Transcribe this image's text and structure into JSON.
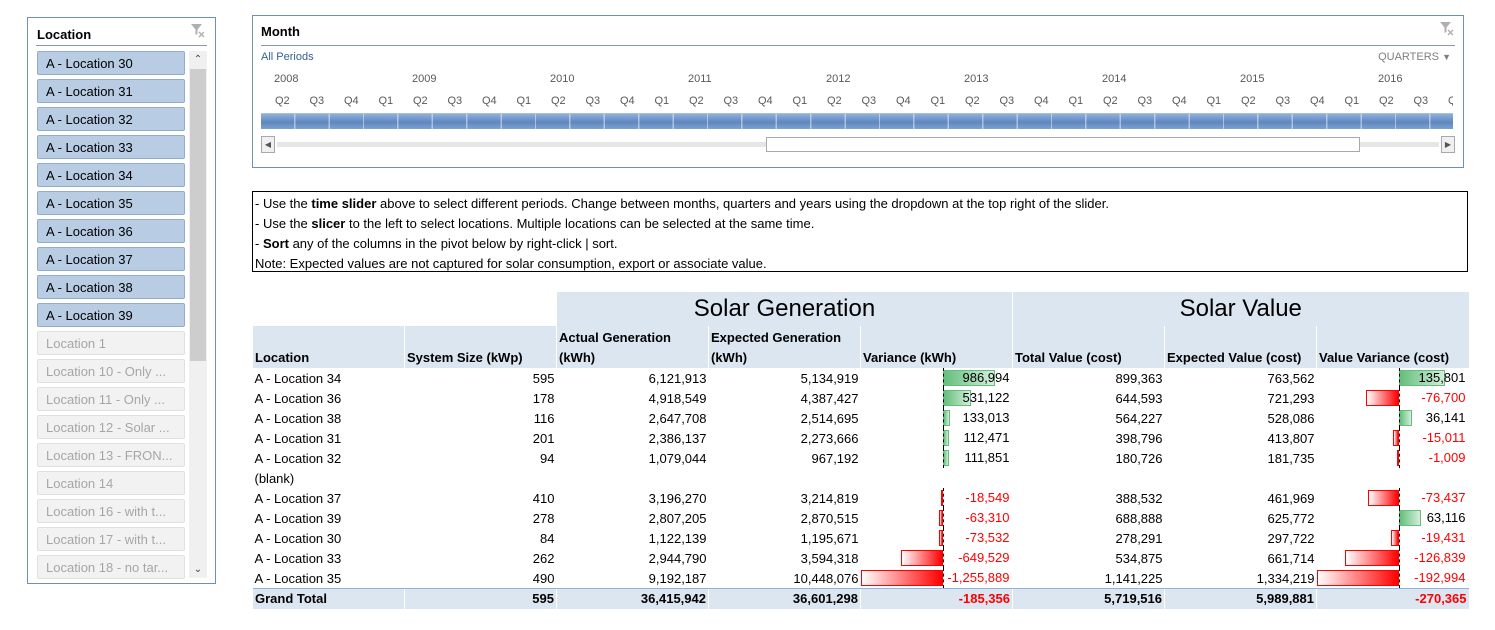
{
  "slicer": {
    "title": "Location",
    "clear_icon": "clear-filter-icon",
    "items": [
      {
        "label": "A - Location 30",
        "selected": true
      },
      {
        "label": "A - Location 31",
        "selected": true
      },
      {
        "label": "A - Location 32",
        "selected": true
      },
      {
        "label": "A - Location 33",
        "selected": true
      },
      {
        "label": "A - Location 34",
        "selected": true
      },
      {
        "label": "A - Location 35",
        "selected": true
      },
      {
        "label": "A - Location 36",
        "selected": true
      },
      {
        "label": "A - Location 37",
        "selected": true
      },
      {
        "label": "A - Location 38",
        "selected": true
      },
      {
        "label": "A - Location 39",
        "selected": true
      },
      {
        "label": "Location 1",
        "selected": false
      },
      {
        "label": "Location 10 - Only ...",
        "selected": false
      },
      {
        "label": "Location 11 - Only ...",
        "selected": false
      },
      {
        "label": "Location 12 - Solar ...",
        "selected": false
      },
      {
        "label": "Location 13 - FRON...",
        "selected": false
      },
      {
        "label": "Location 14",
        "selected": false
      },
      {
        "label": "Location 16 - with t...",
        "selected": false
      },
      {
        "label": "Location 17 - with t...",
        "selected": false
      },
      {
        "label": "Location 18 - no tar...",
        "selected": false
      }
    ]
  },
  "timeline": {
    "title": "Month",
    "all_periods": "All Periods",
    "level": "QUARTERS",
    "years": [
      "2008",
      "2009",
      "2010",
      "2011",
      "2012",
      "2013",
      "2014",
      "2015",
      "2016"
    ],
    "quarters": [
      "Q2",
      "Q3",
      "Q4",
      "Q1",
      "Q2",
      "Q3",
      "Q4",
      "Q1",
      "Q2",
      "Q3",
      "Q4",
      "Q1",
      "Q2",
      "Q3",
      "Q4",
      "Q1",
      "Q2",
      "Q3",
      "Q4",
      "Q1",
      "Q2",
      "Q3",
      "Q4",
      "Q1",
      "Q2",
      "Q3",
      "Q4",
      "Q1",
      "Q2",
      "Q3",
      "Q4",
      "Q1",
      "Q2",
      "Q3",
      "Q"
    ]
  },
  "notes": {
    "line1": {
      "a": "- Use the ",
      "b": "time slider",
      "c": " above to select different periods. Change between months, quarters and years using the dropdown at the top right of the slider."
    },
    "line2": {
      "a": "- Use the ",
      "b": "slicer",
      "c": " to the left to select locations. Multiple locations can be selected at the same time."
    },
    "line3": {
      "a": "- ",
      "b": "Sort",
      "c": " any of the columns in the pivot below by right-click | sort."
    },
    "line4": "Note: Expected values are not captured for solar consumption, export or associate value."
  },
  "pivot": {
    "group_headers": {
      "generation": "Solar Generation",
      "value": "Solar Value"
    },
    "columns": {
      "location": "Location",
      "system_size": "System Size (kWp)",
      "actual_gen": "Actual Generation (kWh)",
      "expected_gen": "Expected Generation (kWh)",
      "variance": "Variance (kWh)",
      "total_value": "Total Value (cost)",
      "expected_value": "Expected Value (cost)",
      "value_variance": "Value Variance (cost)"
    },
    "rows": [
      {
        "location": "A - Location 34",
        "system_size": "595",
        "actual_gen": "6,121,913",
        "expected_gen": "5,134,919",
        "variance": "986,994",
        "variance_num": 986994,
        "total_value": "899,363",
        "expected_value": "763,562",
        "value_variance": "135,801",
        "value_variance_num": 135801
      },
      {
        "location": "A - Location 36",
        "system_size": "178",
        "actual_gen": "4,918,549",
        "expected_gen": "4,387,427",
        "variance": "531,122",
        "variance_num": 531122,
        "total_value": "644,593",
        "expected_value": "721,293",
        "value_variance": "-76,700",
        "value_variance_num": -76700
      },
      {
        "location": "A - Location 38",
        "system_size": "116",
        "actual_gen": "2,647,708",
        "expected_gen": "2,514,695",
        "variance": "133,013",
        "variance_num": 133013,
        "total_value": "564,227",
        "expected_value": "528,086",
        "value_variance": "36,141",
        "value_variance_num": 36141
      },
      {
        "location": "A - Location 31",
        "system_size": "201",
        "actual_gen": "2,386,137",
        "expected_gen": "2,273,666",
        "variance": "112,471",
        "variance_num": 112471,
        "total_value": "398,796",
        "expected_value": "413,807",
        "value_variance": "-15,011",
        "value_variance_num": -15011
      },
      {
        "location": "A - Location 32",
        "system_size": "94",
        "actual_gen": "1,079,044",
        "expected_gen": "967,192",
        "variance": "111,851",
        "variance_num": 111851,
        "total_value": "180,726",
        "expected_value": "181,735",
        "value_variance": "-1,009",
        "value_variance_num": -1009
      },
      {
        "location": "(blank)",
        "system_size": "",
        "actual_gen": "",
        "expected_gen": "",
        "variance": "",
        "variance_num": null,
        "total_value": "",
        "expected_value": "",
        "value_variance": "",
        "value_variance_num": null
      },
      {
        "location": "A - Location 37",
        "system_size": "410",
        "actual_gen": "3,196,270",
        "expected_gen": "3,214,819",
        "variance": "-18,549",
        "variance_num": -18549,
        "total_value": "388,532",
        "expected_value": "461,969",
        "value_variance": "-73,437",
        "value_variance_num": -73437
      },
      {
        "location": "A - Location 39",
        "system_size": "278",
        "actual_gen": "2,807,205",
        "expected_gen": "2,870,515",
        "variance": "-63,310",
        "variance_num": -63310,
        "total_value": "688,888",
        "expected_value": "625,772",
        "value_variance": "63,116",
        "value_variance_num": 63116
      },
      {
        "location": "A - Location 30",
        "system_size": "84",
        "actual_gen": "1,122,139",
        "expected_gen": "1,195,671",
        "variance": "-73,532",
        "variance_num": -73532,
        "total_value": "278,291",
        "expected_value": "297,722",
        "value_variance": "-19,431",
        "value_variance_num": -19431
      },
      {
        "location": "A - Location 33",
        "system_size": "262",
        "actual_gen": "2,944,790",
        "expected_gen": "3,594,318",
        "variance": "-649,529",
        "variance_num": -649529,
        "total_value": "534,875",
        "expected_value": "661,714",
        "value_variance": "-126,839",
        "value_variance_num": -126839
      },
      {
        "location": "A - Location 35",
        "system_size": "490",
        "actual_gen": "9,192,187",
        "expected_gen": "10,448,076",
        "variance": "-1,255,889",
        "variance_num": -1255889,
        "total_value": "1,141,225",
        "expected_value": "1,334,219",
        "value_variance": "-192,994",
        "value_variance_num": -192994
      }
    ],
    "total": {
      "location": "Grand Total",
      "system_size": "595",
      "actual_gen": "36,415,942",
      "expected_gen": "36,601,298",
      "variance": "-185,356",
      "total_value": "5,719,516",
      "expected_value": "5,989,881",
      "value_variance": "-270,365"
    },
    "colors": {
      "positive_bar": "#63be7b",
      "negative_bar": "#ff0000",
      "header_bg": "#dce6f1",
      "negative_text": "#ff0000"
    }
  }
}
